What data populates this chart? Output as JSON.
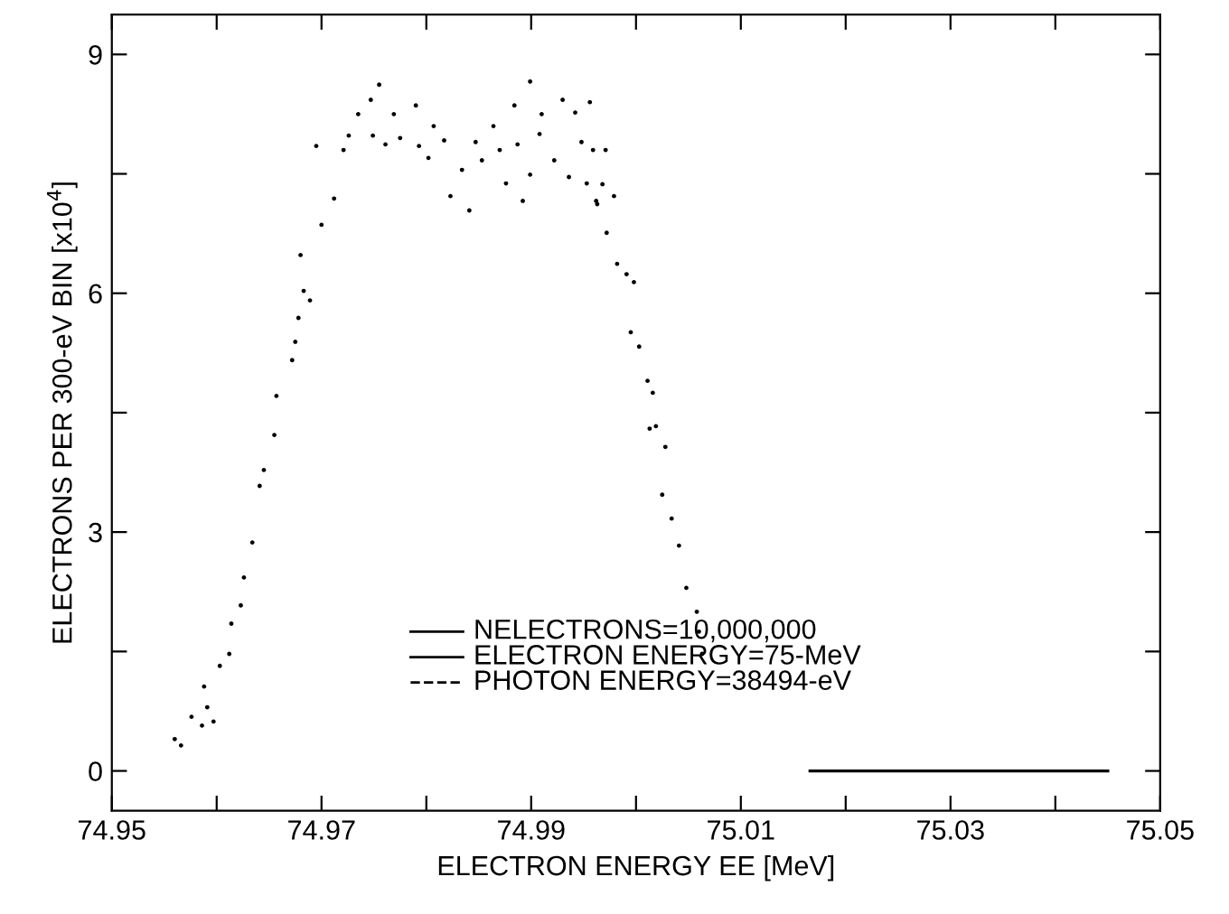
{
  "chart_data": {
    "type": "scatter",
    "xlabel": "ELECTRON ENERGY EE [MeV]",
    "ylabel": "ELECTRONS PER 300-eV BIN [x10$^{4}$]",
    "xlim": [
      74.95,
      75.05
    ],
    "ylim": [
      -0.5,
      9.5
    ],
    "xticks": [
      74.95,
      {
        "value": 74.96,
        "label": null
      },
      74.97,
      {
        "value": 74.98,
        "label": null
      },
      74.99,
      {
        "value": 75.0,
        "label": null
      },
      75.01,
      {
        "value": 75.02,
        "label": null
      },
      75.03,
      {
        "value": 75.04,
        "label": null
      },
      75.05
    ],
    "yticks": [
      0,
      {
        "value": 1.5,
        "label": null
      },
      3,
      {
        "value": 4.5,
        "label": null
      },
      6,
      {
        "value": 7.5,
        "label": null
      },
      9
    ],
    "grid": false,
    "annotations": [
      "NELECTRONS=10,000,000",
      "ELECTRON ENERGY=75-MeV",
      "PHOTON ENERGY=38494-eV"
    ],
    "series": [
      {
        "marker": "circle",
        "color": "#000000",
        "x": [
          74.956,
          74.9566,
          74.9576,
          74.9586,
          74.9591,
          74.9597,
          74.9588,
          74.9603,
          74.9612,
          74.9614,
          74.9623,
          74.9626,
          74.9634,
          74.9641,
          74.9645,
          74.9655,
          74.9657,
          74.9672,
          74.9675,
          74.9678,
          74.9689,
          74.9683,
          74.968,
          74.97,
          74.9712,
          74.9721,
          74.9695,
          74.9726,
          74.9735,
          74.9747,
          74.9755,
          74.9769,
          74.9749,
          74.9761,
          74.9775,
          74.979,
          74.9793,
          74.9802,
          74.9807,
          74.9817,
          74.9834,
          74.9847,
          74.9841,
          74.9823,
          74.9853,
          74.9864,
          74.987,
          74.9876,
          74.9884,
          74.9892,
          74.9887,
          74.9899,
          74.9899,
          74.9908,
          74.991,
          74.9922,
          74.993,
          74.9942,
          74.9936,
          74.9948,
          74.9953,
          74.9959,
          74.9962,
          74.9956,
          74.9971,
          74.9968,
          74.9979,
          74.9963,
          74.9972,
          74.9982,
          74.9991,
          74.9998,
          74.9995,
          75.0003,
          75.0011,
          75.0016,
          75.0013,
          75.0019,
          75.0028,
          75.0025,
          75.0034,
          75.0041,
          75.0048,
          75.0058,
          75.006,
          75.0063
        ],
        "values": [
          0.4,
          0.32,
          0.68,
          0.57,
          0.8,
          0.62,
          1.06,
          1.32,
          1.47,
          1.85,
          2.08,
          2.43,
          2.87,
          3.58,
          3.78,
          4.22,
          4.71,
          5.16,
          5.39,
          5.69,
          5.91,
          6.03,
          6.48,
          6.86,
          7.19,
          7.8,
          7.85,
          7.98,
          8.25,
          8.43,
          8.62,
          8.25,
          7.98,
          7.87,
          7.95,
          8.36,
          7.85,
          7.7,
          8.1,
          7.92,
          7.55,
          7.9,
          7.04,
          7.22,
          7.67,
          8.1,
          7.8,
          7.38,
          8.36,
          7.16,
          7.87,
          7.49,
          8.66,
          8.0,
          8.25,
          7.67,
          8.43,
          8.27,
          7.46,
          7.9,
          7.38,
          7.8,
          7.16,
          8.4,
          7.8,
          7.37,
          7.22,
          7.12,
          6.76,
          6.37,
          6.24,
          6.14,
          5.51,
          5.33,
          4.9,
          4.75,
          4.3,
          4.33,
          4.07,
          3.47,
          3.17,
          2.83,
          2.3,
          2.0,
          1.75,
          1.47
        ]
      },
      {
        "type": "line",
        "color": "#000000",
        "x": [
          75.0166,
          75.045
        ],
        "values": [
          0,
          0
        ]
      }
    ]
  }
}
